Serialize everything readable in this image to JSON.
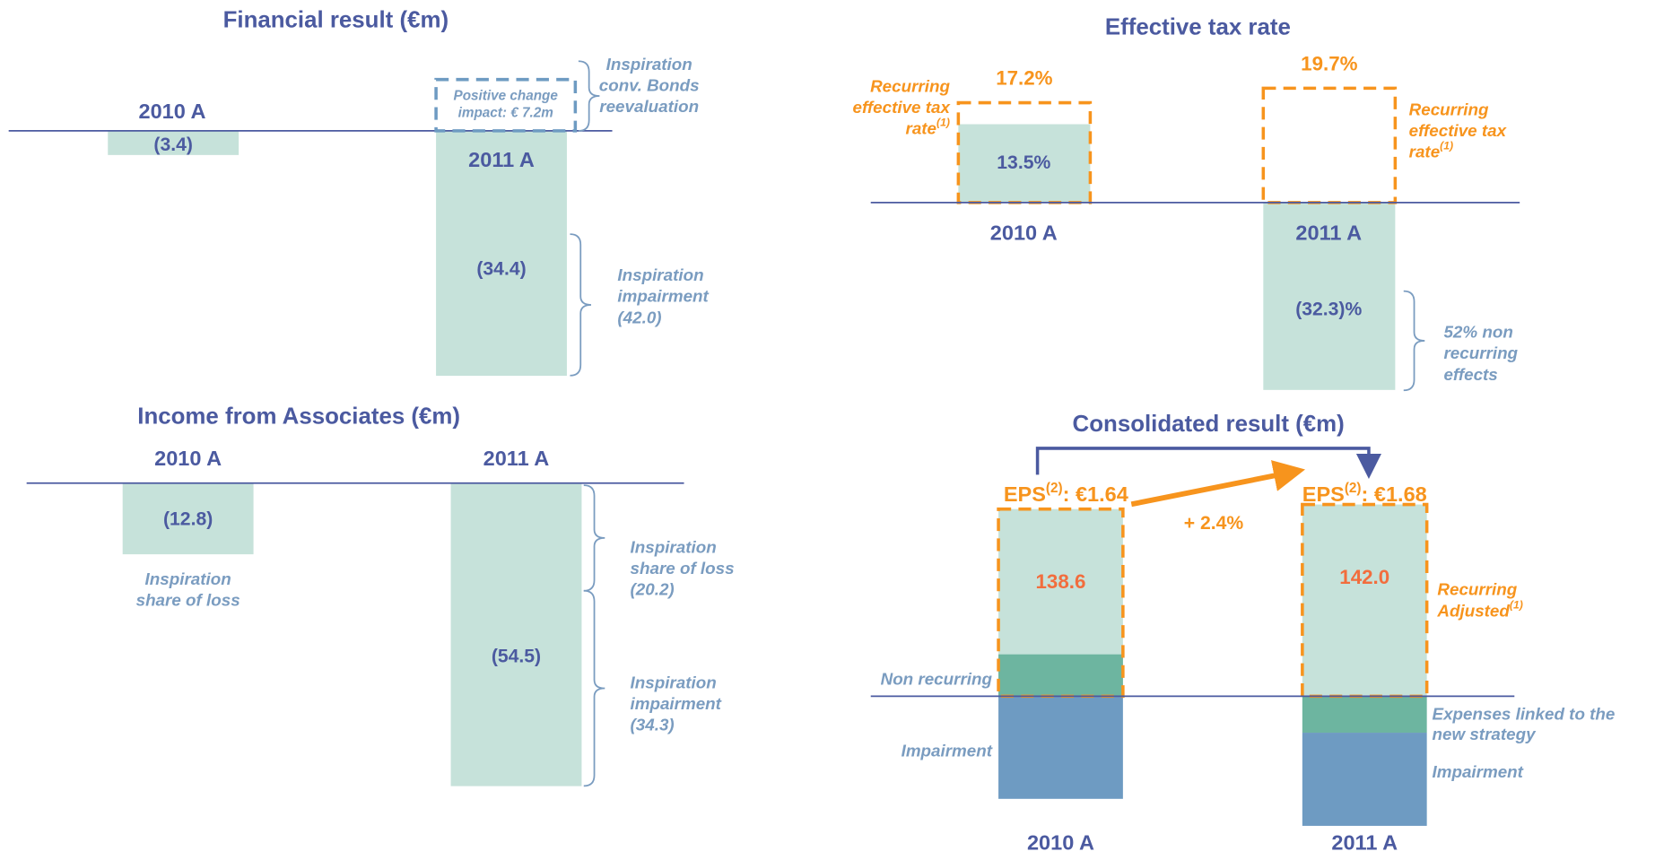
{
  "chart_data": [
    {
      "type": "bar",
      "title": "Financial result (€m)",
      "categories": [
        "2010 A",
        "2011 A"
      ],
      "values": [
        -3.4,
        -34.4
      ],
      "value_labels": [
        "(3.4)",
        "(34.4)"
      ],
      "color": "#c6e2da",
      "positive_change": {
        "value": 7.2,
        "lines": [
          "Positive change",
          "impact: € 7.2m"
        ],
        "color": "#6e9bc2"
      },
      "annotations": [
        {
          "lines": [
            "Inspiration",
            "conv. Bonds",
            "reevaluation"
          ]
        },
        {
          "lines": [
            "Inspiration",
            "impairment",
            "(42.0)"
          ]
        }
      ]
    },
    {
      "type": "bar",
      "title": "Effective tax rate",
      "categories": [
        "2010 A",
        "2011 A"
      ],
      "values": [
        13.5,
        -32.3
      ],
      "value_labels": [
        "13.5%",
        "(32.3)%"
      ],
      "color": "#c6e2da",
      "recurring": {
        "values": [
          17.2,
          19.7
        ],
        "value_labels": [
          "17.2%",
          "19.7%"
        ],
        "color": "#f7941d"
      },
      "annotations": [
        {
          "lines": [
            "Recurring",
            "effective tax",
            "rate"
          ],
          "sup": "(1)",
          "color": "#f7941d"
        },
        {
          "lines": [
            "Recurring",
            "effective tax",
            "rate"
          ],
          "sup": "(1)",
          "color": "#f7941d"
        },
        {
          "lines": [
            "52% non",
            "recurring",
            "effects"
          ]
        }
      ]
    },
    {
      "type": "bar",
      "title": "Income from Associates (€m)",
      "categories": [
        "2010 A",
        "2011 A"
      ],
      "values": [
        -12.8,
        -54.5
      ],
      "value_labels": [
        "(12.8)",
        "(54.5)"
      ],
      "color": "#c6e2da",
      "annotations": [
        {
          "lines": [
            "Inspiration",
            "share of loss"
          ]
        },
        {
          "lines": [
            "Inspiration",
            "share of loss",
            "(20.2)"
          ]
        },
        {
          "lines": [
            "Inspiration",
            "impairment",
            "(34.3)"
          ]
        }
      ]
    },
    {
      "type": "stacked_bar",
      "title": "Consolidated result (€m)",
      "categories": [
        "2010 A",
        "2011 A"
      ],
      "recurring": {
        "values": [
          138.6,
          142.0
        ],
        "value_labels": [
          "138.6",
          "142.0"
        ],
        "color": "#f7941d",
        "fill": "#c6e2da",
        "label_color": "#f26d3d",
        "annotation": {
          "lines": [
            "Recurring",
            "Adjusted"
          ],
          "sup": "(1)"
        }
      },
      "series": [
        {
          "color": "#6db5a0",
          "values": [
            31,
            -27
          ],
          "labels": [
            [
              "Non recurring"
            ],
            [
              "Expenses linked to the",
              "new strategy"
            ]
          ]
        },
        {
          "color": "#6e9bc2",
          "values": [
            -76,
            -69
          ],
          "labels": [
            [
              "Impairment"
            ],
            [
              "Impairment"
            ]
          ]
        }
      ],
      "eps": [
        {
          "label": "EPS",
          "sup": "(2)",
          "value": ":  €1.64"
        },
        {
          "label": "EPS",
          "sup": "(2)",
          "value": ":  €1.68"
        }
      ],
      "growth": "+ 2.4%"
    }
  ]
}
